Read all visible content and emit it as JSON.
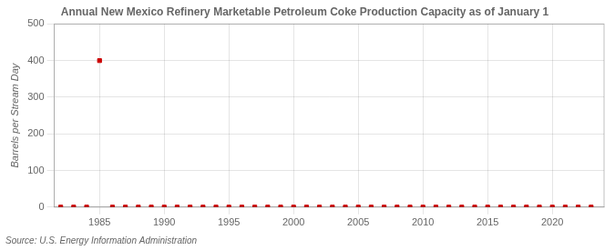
{
  "chart_data": {
    "type": "scatter",
    "title": "Annual New Mexico Refinery Marketable Petroleum Coke Production Capacity as of January 1",
    "y_label": "Barrels per Stream Day",
    "annotations": [
      "Source: U.S. Energy Information Administration"
    ],
    "x": [
      1982,
      1983,
      1984,
      1985,
      1986,
      1987,
      1988,
      1989,
      1990,
      1991,
      1992,
      1993,
      1994,
      1995,
      1996,
      1997,
      1998,
      1999,
      2000,
      2001,
      2002,
      2003,
      2004,
      2005,
      2006,
      2007,
      2008,
      2009,
      2010,
      2011,
      2012,
      2013,
      2014,
      2015,
      2016,
      2017,
      2018,
      2019,
      2020,
      2021,
      2022,
      2023
    ],
    "values": [
      0,
      0,
      0,
      400,
      0,
      0,
      0,
      0,
      0,
      0,
      0,
      0,
      0,
      0,
      0,
      0,
      0,
      0,
      0,
      0,
      0,
      0,
      0,
      0,
      0,
      0,
      0,
      0,
      0,
      0,
      0,
      0,
      0,
      0,
      0,
      0,
      0,
      0,
      0,
      0,
      0,
      0
    ],
    "color": "#cc0000",
    "marker": "square",
    "xlim": [
      1981.5,
      2024
    ],
    "xticks": [
      1985,
      1990,
      1995,
      2000,
      2005,
      2010,
      2015,
      2020
    ],
    "ylim": [
      0,
      500
    ],
    "yticks": [
      0,
      100,
      200,
      300,
      400,
      500
    ],
    "grid": true
  }
}
